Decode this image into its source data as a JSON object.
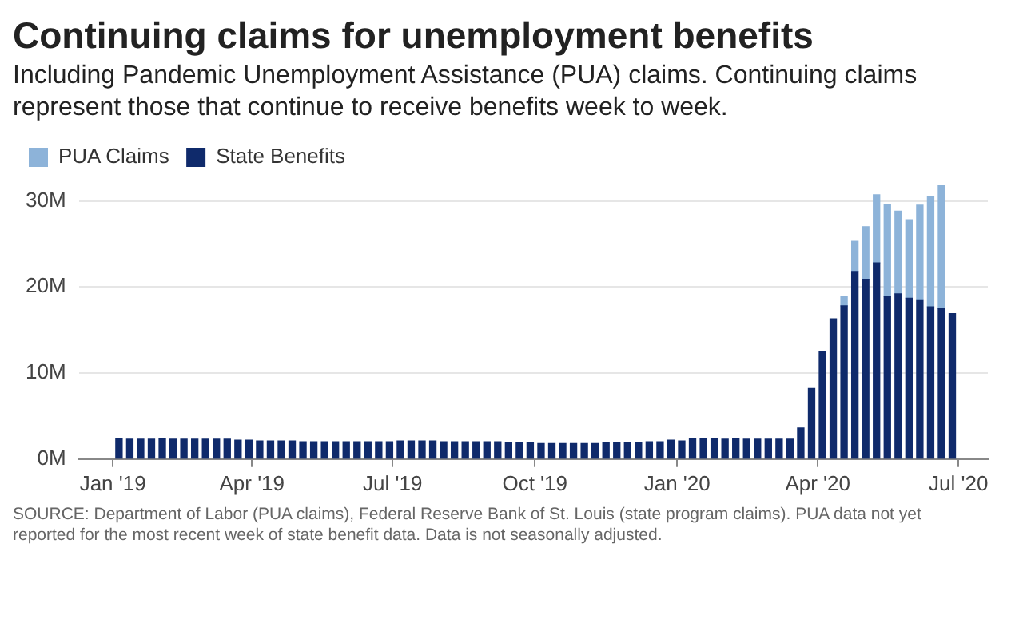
{
  "chart_data": {
    "type": "bar",
    "stacked": true,
    "title": "Continuing claims for unemployment benefits",
    "subtitle": "Including Pandemic Unemployment Assistance (PUA) claims. Continuing claims represent those that continue to receive benefits week to week.",
    "annotations": [
      "SOURCE: Department of Labor (PUA claims), Federal Reserve Bank of St. Louis (state program claims). PUA data not yet reported for the most recent week of state benefit data. Data is not seasonally adjusted."
    ],
    "x": [
      "2019-01-05",
      "2019-01-12",
      "2019-01-19",
      "2019-01-26",
      "2019-02-02",
      "2019-02-09",
      "2019-02-16",
      "2019-02-23",
      "2019-03-02",
      "2019-03-09",
      "2019-03-16",
      "2019-03-23",
      "2019-03-30",
      "2019-04-06",
      "2019-04-13",
      "2019-04-20",
      "2019-04-27",
      "2019-05-04",
      "2019-05-11",
      "2019-05-18",
      "2019-05-25",
      "2019-06-01",
      "2019-06-08",
      "2019-06-15",
      "2019-06-22",
      "2019-06-29",
      "2019-07-06",
      "2019-07-13",
      "2019-07-20",
      "2019-07-27",
      "2019-08-03",
      "2019-08-10",
      "2019-08-17",
      "2019-08-24",
      "2019-08-31",
      "2019-09-07",
      "2019-09-14",
      "2019-09-21",
      "2019-09-28",
      "2019-10-05",
      "2019-10-12",
      "2019-10-19",
      "2019-10-26",
      "2019-11-02",
      "2019-11-09",
      "2019-11-16",
      "2019-11-23",
      "2019-11-30",
      "2019-12-07",
      "2019-12-14",
      "2019-12-21",
      "2019-12-28",
      "2020-01-04",
      "2020-01-11",
      "2020-01-18",
      "2020-01-25",
      "2020-02-01",
      "2020-02-08",
      "2020-02-15",
      "2020-02-22",
      "2020-02-29",
      "2020-03-07",
      "2020-03-14",
      "2020-03-21",
      "2020-03-28",
      "2020-04-04",
      "2020-04-11",
      "2020-04-18",
      "2020-04-25",
      "2020-05-02",
      "2020-05-09",
      "2020-05-16",
      "2020-05-23",
      "2020-05-30",
      "2020-06-06",
      "2020-06-13",
      "2020-06-20",
      "2020-06-27"
    ],
    "series": [
      {
        "name": "State Benefits",
        "color": "#0f2a6b",
        "values": [
          2.4,
          2.3,
          2.3,
          2.3,
          2.4,
          2.3,
          2.3,
          2.3,
          2.3,
          2.3,
          2.3,
          2.2,
          2.2,
          2.1,
          2.1,
          2.1,
          2.1,
          2.0,
          2.0,
          2.0,
          2.0,
          2.0,
          2.0,
          2.0,
          2.0,
          2.0,
          2.1,
          2.1,
          2.1,
          2.1,
          2.0,
          2.0,
          2.0,
          2.0,
          2.0,
          2.0,
          1.9,
          1.9,
          1.9,
          1.8,
          1.8,
          1.8,
          1.8,
          1.8,
          1.8,
          1.9,
          1.9,
          1.9,
          1.9,
          2.0,
          2.0,
          2.2,
          2.1,
          2.4,
          2.4,
          2.4,
          2.3,
          2.4,
          2.3,
          2.3,
          2.3,
          2.3,
          2.3,
          3.6,
          8.2,
          12.5,
          16.3,
          17.8,
          21.8,
          20.9,
          22.8,
          18.9,
          19.2,
          18.7,
          18.5,
          17.7,
          17.5,
          16.9
        ]
      },
      {
        "name": "PUA Claims",
        "color": "#8db3d9",
        "values": [
          null,
          null,
          null,
          null,
          null,
          null,
          null,
          null,
          null,
          null,
          null,
          null,
          null,
          null,
          null,
          null,
          null,
          null,
          null,
          null,
          null,
          null,
          null,
          null,
          null,
          null,
          null,
          null,
          null,
          null,
          null,
          null,
          null,
          null,
          null,
          null,
          null,
          null,
          null,
          null,
          null,
          null,
          null,
          null,
          null,
          null,
          null,
          null,
          null,
          null,
          null,
          null,
          null,
          null,
          null,
          null,
          null,
          null,
          null,
          null,
          null,
          null,
          null,
          null,
          null,
          null,
          null,
          1.1,
          3.5,
          6.1,
          7.9,
          10.7,
          9.6,
          9.1,
          11.0,
          12.8,
          14.3,
          null
        ]
      }
    ],
    "ylim": [
      0,
      32
    ],
    "yticks": [
      {
        "value": 0,
        "label": "0M"
      },
      {
        "value": 10,
        "label": "10M"
      },
      {
        "value": 20,
        "label": "20M"
      },
      {
        "value": 30,
        "label": "30M"
      }
    ],
    "xlim": [
      "2018-12-10",
      "2020-07-20"
    ],
    "xticks": [
      {
        "value": "2019-01-01",
        "label": "Jan '19"
      },
      {
        "value": "2019-04-01",
        "label": "Apr '19"
      },
      {
        "value": "2019-07-01",
        "label": "Jul '19"
      },
      {
        "value": "2019-10-01",
        "label": "Oct '19"
      },
      {
        "value": "2020-01-01",
        "label": "Jan '20"
      },
      {
        "value": "2020-04-01",
        "label": "Apr '20"
      },
      {
        "value": "2020-07-01",
        "label": "Jul '20"
      }
    ],
    "grid": "y",
    "legend": "top left"
  }
}
